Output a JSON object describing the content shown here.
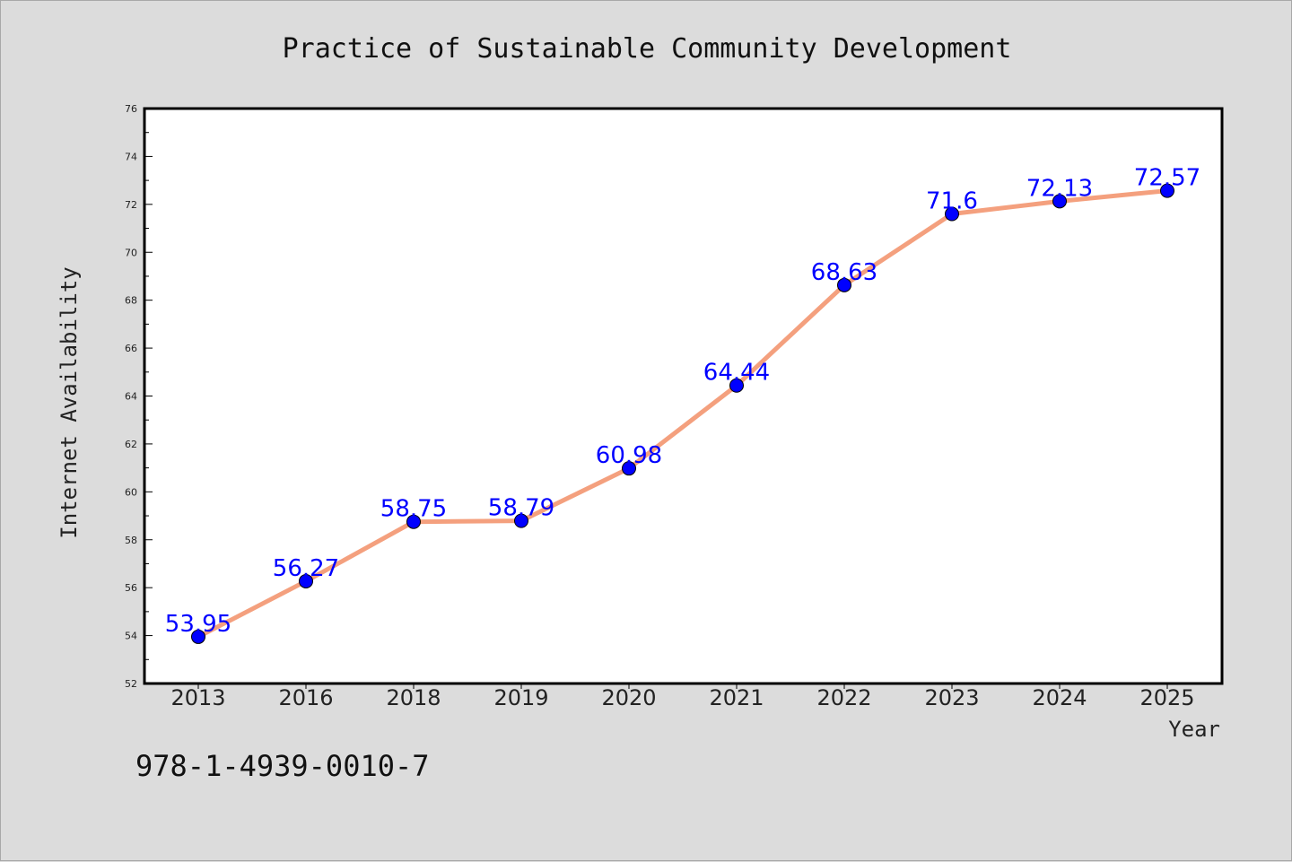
{
  "chart_data": {
    "type": "line",
    "title": "Practice of Sustainable Community Development",
    "xlabel": "Year",
    "ylabel": "Internet Availability",
    "categories": [
      "2013",
      "2016",
      "2018",
      "2019",
      "2020",
      "2021",
      "2022",
      "2023",
      "2024",
      "2025"
    ],
    "series": [
      {
        "values": [
          53.95,
          56.27,
          58.75,
          58.79,
          60.98,
          64.44,
          68.63,
          71.6,
          72.13,
          72.57
        ],
        "data_labels": [
          "53.95",
          "56.27",
          "58.75",
          "58.79",
          "60.98",
          "64.44",
          "68.63",
          "71.6",
          "72.13",
          "72.57"
        ],
        "line_color": "#f4a07e",
        "marker_color": "#0000ff"
      }
    ],
    "ylim": [
      52,
      76
    ],
    "yticks": [
      "52",
      "54",
      "56",
      "58",
      "60",
      "62",
      "64",
      "66",
      "68",
      "70",
      "72",
      "74",
      "76"
    ],
    "grid": false
  },
  "footer": {
    "isbn": "978-1-4939-0010-7"
  }
}
